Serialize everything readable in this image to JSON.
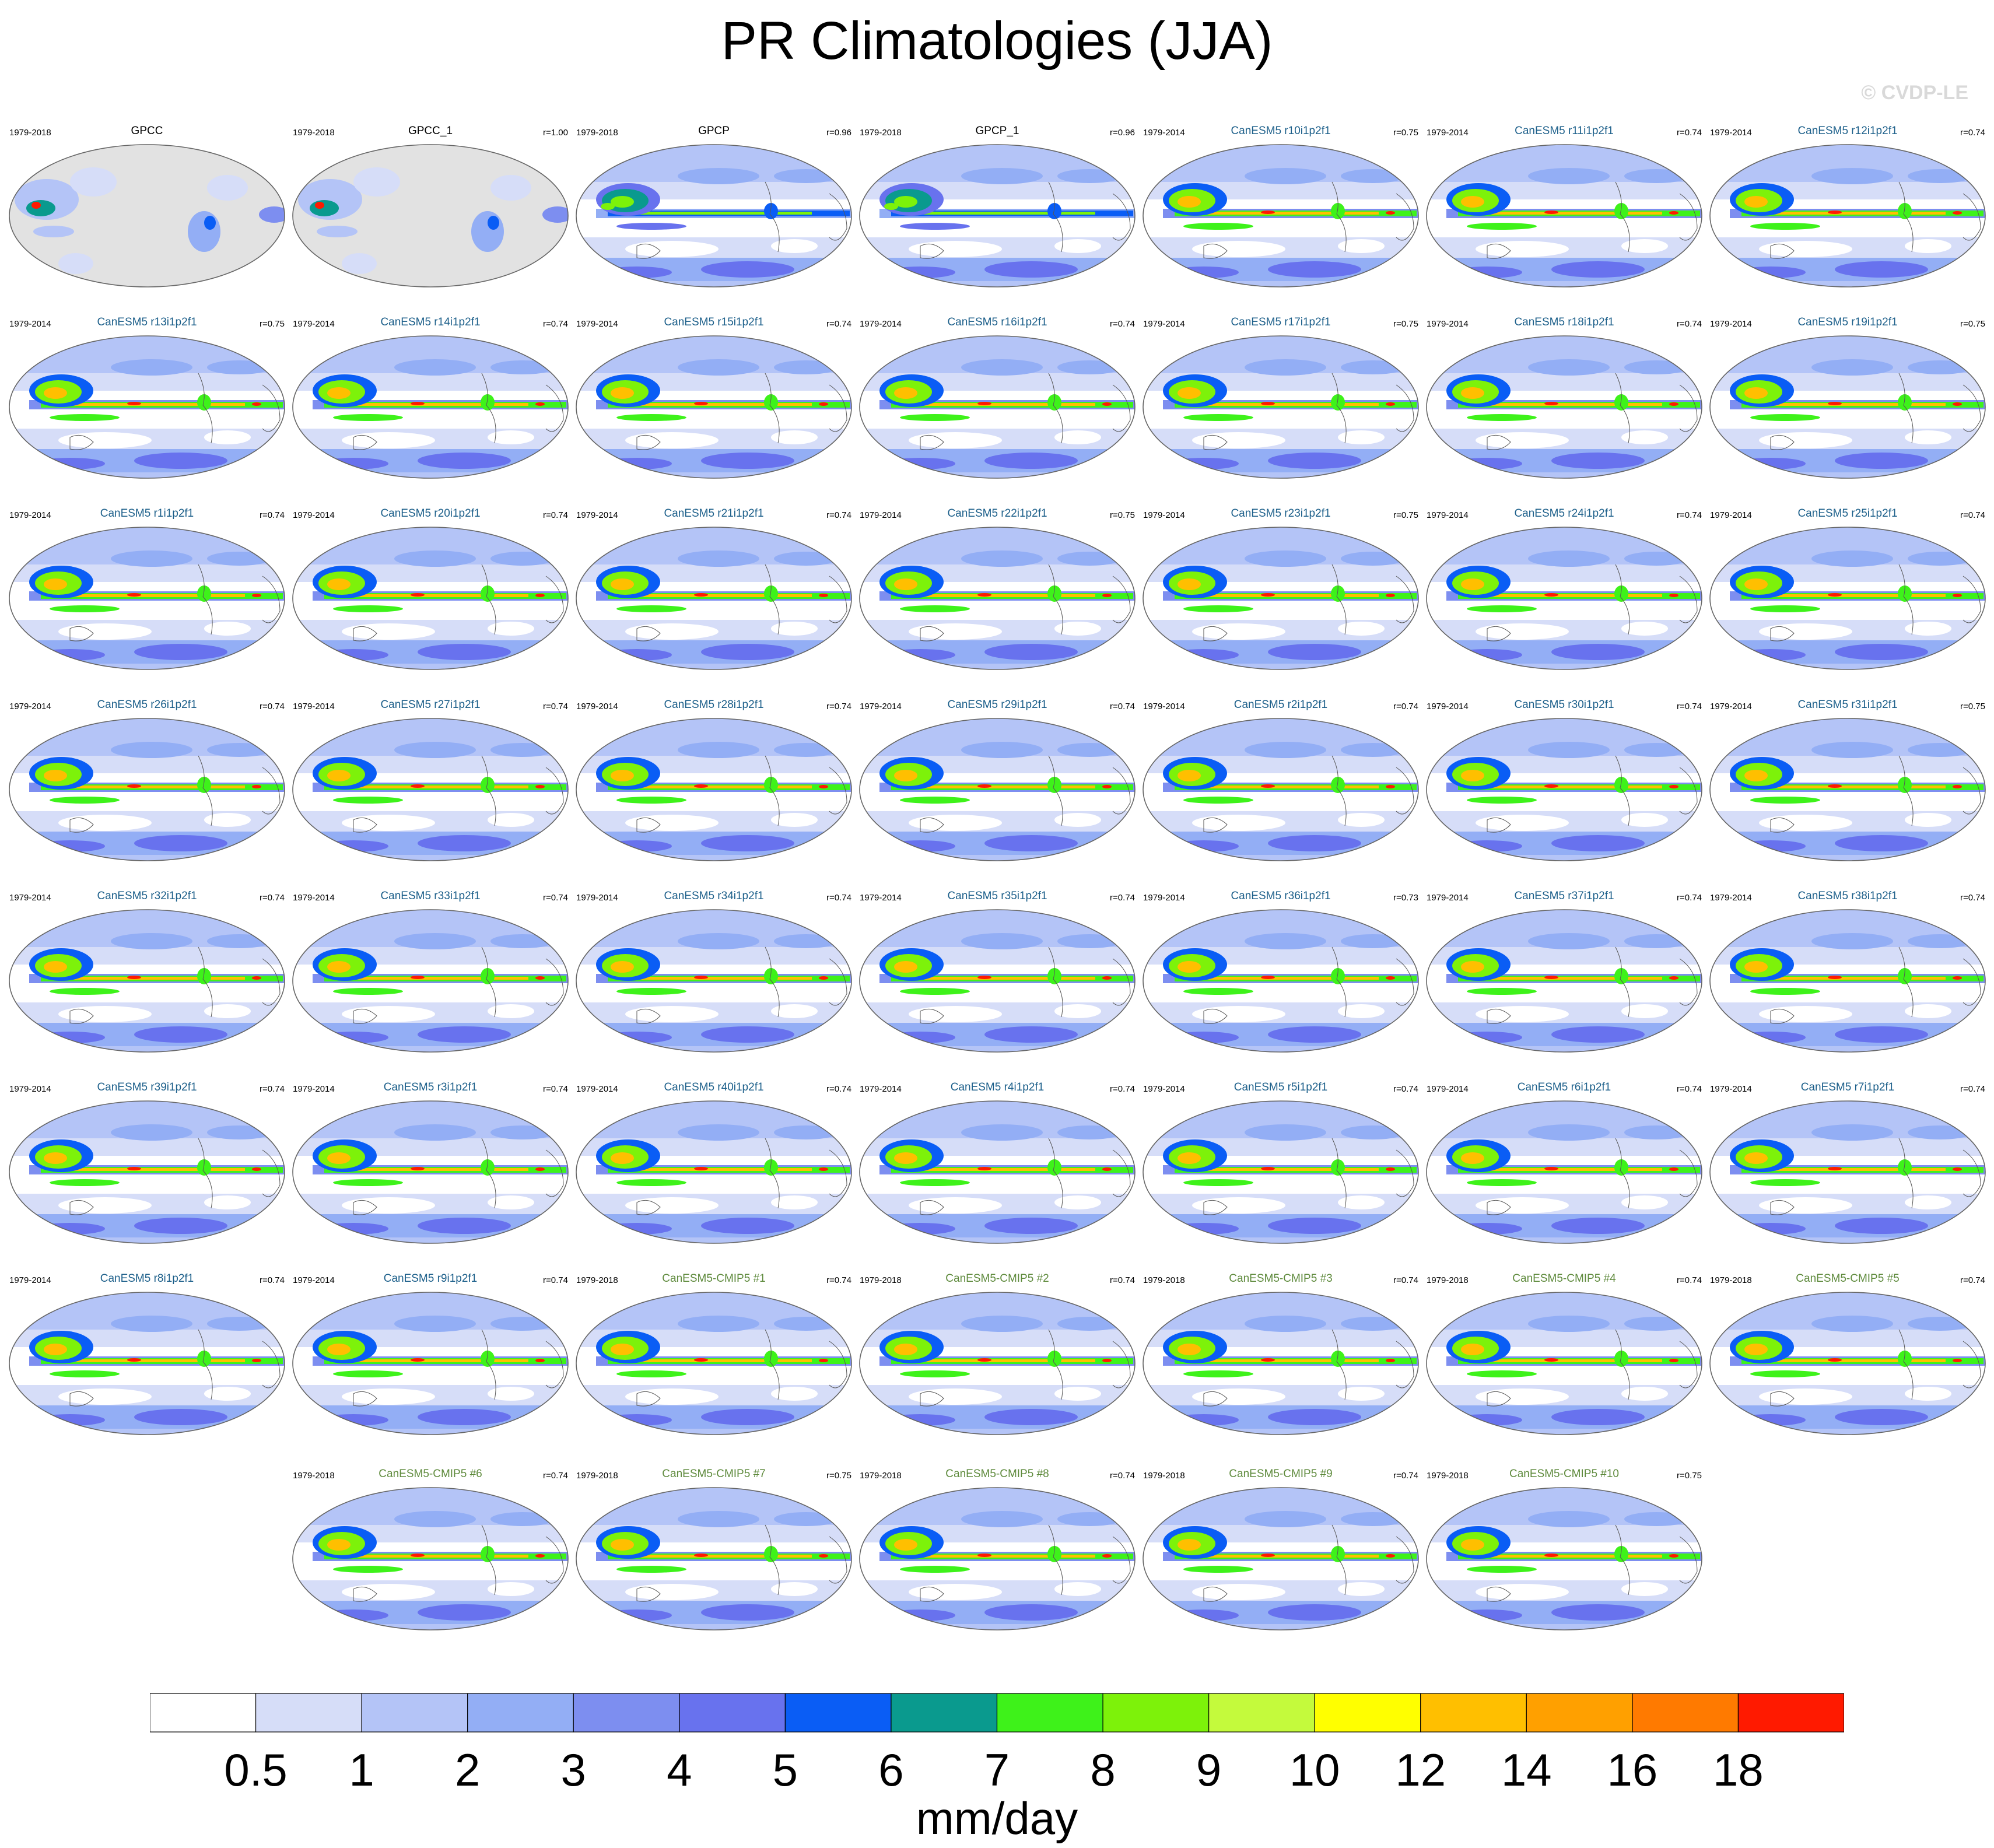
{
  "title": "PR Climatologies (JJA)",
  "watermark": "© CVDP-LE",
  "chart_data": {
    "type": "map-panels",
    "title": "PR Climatologies (JJA)",
    "variable": "precipitation",
    "season": "JJA",
    "units": "mm/day",
    "colorbar": {
      "levels": [
        "0.5",
        "1",
        "2",
        "3",
        "4",
        "5",
        "6",
        "7",
        "8",
        "9",
        "10",
        "12",
        "14",
        "16",
        "18"
      ],
      "colors": [
        "#ffffff",
        "#d6ddf8",
        "#b4c4f7",
        "#93aef5",
        "#7d8ef0",
        "#6872ee",
        "#0a5df5",
        "#0a9a8e",
        "#3ef21a",
        "#7df20a",
        "#c4fa3c",
        "#ffff00",
        "#ffbf00",
        "#ffa000",
        "#ff7a00",
        "#ff1a00"
      ]
    },
    "panels": [
      {
        "title": "GPCC",
        "period": "1979-2018",
        "r": "",
        "kind": "obs-land"
      },
      {
        "title": "GPCC_1",
        "period": "1979-2018",
        "r": "r=1.00",
        "kind": "obs-land"
      },
      {
        "title": "GPCP",
        "period": "1979-2018",
        "r": "r=0.96",
        "kind": "obs"
      },
      {
        "title": "GPCP_1",
        "period": "1979-2018",
        "r": "r=0.96",
        "kind": "obs"
      },
      {
        "title": "CanESM5 r10i1p2f1",
        "period": "1979-2014",
        "r": "r=0.75",
        "kind": "model"
      },
      {
        "title": "CanESM5 r11i1p2f1",
        "period": "1979-2014",
        "r": "r=0.74",
        "kind": "model"
      },
      {
        "title": "CanESM5 r12i1p2f1",
        "period": "1979-2014",
        "r": "r=0.74",
        "kind": "model"
      },
      {
        "title": "CanESM5 r13i1p2f1",
        "period": "1979-2014",
        "r": "r=0.75",
        "kind": "model"
      },
      {
        "title": "CanESM5 r14i1p2f1",
        "period": "1979-2014",
        "r": "r=0.74",
        "kind": "model"
      },
      {
        "title": "CanESM5 r15i1p2f1",
        "period": "1979-2014",
        "r": "r=0.74",
        "kind": "model"
      },
      {
        "title": "CanESM5 r16i1p2f1",
        "period": "1979-2014",
        "r": "r=0.74",
        "kind": "model"
      },
      {
        "title": "CanESM5 r17i1p2f1",
        "period": "1979-2014",
        "r": "r=0.75",
        "kind": "model"
      },
      {
        "title": "CanESM5 r18i1p2f1",
        "period": "1979-2014",
        "r": "r=0.74",
        "kind": "model"
      },
      {
        "title": "CanESM5 r19i1p2f1",
        "period": "1979-2014",
        "r": "r=0.75",
        "kind": "model"
      },
      {
        "title": "CanESM5 r1i1p2f1",
        "period": "1979-2014",
        "r": "r=0.74",
        "kind": "model"
      },
      {
        "title": "CanESM5 r20i1p2f1",
        "period": "1979-2014",
        "r": "r=0.74",
        "kind": "model"
      },
      {
        "title": "CanESM5 r21i1p2f1",
        "period": "1979-2014",
        "r": "r=0.74",
        "kind": "model"
      },
      {
        "title": "CanESM5 r22i1p2f1",
        "period": "1979-2014",
        "r": "r=0.75",
        "kind": "model"
      },
      {
        "title": "CanESM5 r23i1p2f1",
        "period": "1979-2014",
        "r": "r=0.75",
        "kind": "model"
      },
      {
        "title": "CanESM5 r24i1p2f1",
        "period": "1979-2014",
        "r": "r=0.74",
        "kind": "model"
      },
      {
        "title": "CanESM5 r25i1p2f1",
        "period": "1979-2014",
        "r": "r=0.74",
        "kind": "model"
      },
      {
        "title": "CanESM5 r26i1p2f1",
        "period": "1979-2014",
        "r": "r=0.74",
        "kind": "model"
      },
      {
        "title": "CanESM5 r27i1p2f1",
        "period": "1979-2014",
        "r": "r=0.74",
        "kind": "model"
      },
      {
        "title": "CanESM5 r28i1p2f1",
        "period": "1979-2014",
        "r": "r=0.74",
        "kind": "model"
      },
      {
        "title": "CanESM5 r29i1p2f1",
        "period": "1979-2014",
        "r": "r=0.74",
        "kind": "model"
      },
      {
        "title": "CanESM5 r2i1p2f1",
        "period": "1979-2014",
        "r": "r=0.74",
        "kind": "model"
      },
      {
        "title": "CanESM5 r30i1p2f1",
        "period": "1979-2014",
        "r": "r=0.74",
        "kind": "model"
      },
      {
        "title": "CanESM5 r31i1p2f1",
        "period": "1979-2014",
        "r": "r=0.75",
        "kind": "model"
      },
      {
        "title": "CanESM5 r32i1p2f1",
        "period": "1979-2014",
        "r": "r=0.74",
        "kind": "model"
      },
      {
        "title": "CanESM5 r33i1p2f1",
        "period": "1979-2014",
        "r": "r=0.74",
        "kind": "model"
      },
      {
        "title": "CanESM5 r34i1p2f1",
        "period": "1979-2014",
        "r": "r=0.74",
        "kind": "model"
      },
      {
        "title": "CanESM5 r35i1p2f1",
        "period": "1979-2014",
        "r": "r=0.74",
        "kind": "model"
      },
      {
        "title": "CanESM5 r36i1p2f1",
        "period": "1979-2014",
        "r": "r=0.73",
        "kind": "model"
      },
      {
        "title": "CanESM5 r37i1p2f1",
        "period": "1979-2014",
        "r": "r=0.74",
        "kind": "model"
      },
      {
        "title": "CanESM5 r38i1p2f1",
        "period": "1979-2014",
        "r": "r=0.74",
        "kind": "model"
      },
      {
        "title": "CanESM5 r39i1p2f1",
        "period": "1979-2014",
        "r": "r=0.74",
        "kind": "model"
      },
      {
        "title": "CanESM5 r3i1p2f1",
        "period": "1979-2014",
        "r": "r=0.74",
        "kind": "model"
      },
      {
        "title": "CanESM5 r40i1p2f1",
        "period": "1979-2014",
        "r": "r=0.74",
        "kind": "model"
      },
      {
        "title": "CanESM5 r4i1p2f1",
        "period": "1979-2014",
        "r": "r=0.74",
        "kind": "model"
      },
      {
        "title": "CanESM5 r5i1p2f1",
        "period": "1979-2014",
        "r": "r=0.74",
        "kind": "model"
      },
      {
        "title": "CanESM5 r6i1p2f1",
        "period": "1979-2014",
        "r": "r=0.74",
        "kind": "model"
      },
      {
        "title": "CanESM5 r7i1p2f1",
        "period": "1979-2014",
        "r": "r=0.74",
        "kind": "model"
      },
      {
        "title": "CanESM5 r8i1p2f1",
        "period": "1979-2014",
        "r": "r=0.74",
        "kind": "model"
      },
      {
        "title": "CanESM5 r9i1p2f1",
        "period": "1979-2014",
        "r": "r=0.74",
        "kind": "model"
      },
      {
        "title": "CanESM5-CMIP5 #1",
        "period": "1979-2018",
        "r": "r=0.74",
        "kind": "cmip5"
      },
      {
        "title": "CanESM5-CMIP5 #2",
        "period": "1979-2018",
        "r": "r=0.74",
        "kind": "cmip5"
      },
      {
        "title": "CanESM5-CMIP5 #3",
        "period": "1979-2018",
        "r": "r=0.74",
        "kind": "cmip5"
      },
      {
        "title": "CanESM5-CMIP5 #4",
        "period": "1979-2018",
        "r": "r=0.74",
        "kind": "cmip5"
      },
      {
        "title": "CanESM5-CMIP5 #5",
        "period": "1979-2018",
        "r": "r=0.74",
        "kind": "cmip5"
      },
      {
        "title": "CanESM5-CMIP5 #6",
        "period": "1979-2018",
        "r": "r=0.74",
        "kind": "cmip5"
      },
      {
        "title": "CanESM5-CMIP5 #7",
        "period": "1979-2018",
        "r": "r=0.75",
        "kind": "cmip5"
      },
      {
        "title": "CanESM5-CMIP5 #8",
        "period": "1979-2018",
        "r": "r=0.74",
        "kind": "cmip5"
      },
      {
        "title": "CanESM5-CMIP5 #9",
        "period": "1979-2018",
        "r": "r=0.74",
        "kind": "cmip5"
      },
      {
        "title": "CanESM5-CMIP5 #10",
        "period": "1979-2018",
        "r": "r=0.75",
        "kind": "cmip5"
      }
    ]
  },
  "title_colors": {
    "obs": "#000000",
    "model": "#1c5f8a",
    "cmip5": "#5e8a3c"
  }
}
